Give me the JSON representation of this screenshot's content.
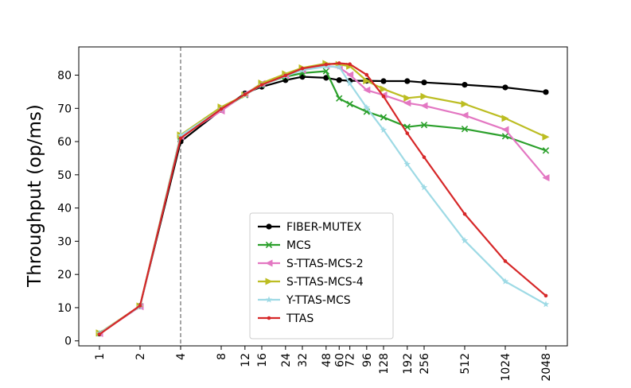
{
  "chart_data": {
    "type": "line",
    "title": "",
    "xlabel": "",
    "ylabel": "Throughput (op/ms)",
    "xscale": "log2",
    "x": [
      1,
      2,
      4,
      8,
      12,
      16,
      24,
      32,
      48,
      60,
      72,
      96,
      128,
      192,
      256,
      512,
      1024,
      2048
    ],
    "x_tick_labels": [
      "1",
      "2",
      "4",
      "8",
      "12",
      "16",
      "24",
      "32",
      "48",
      "60",
      "72",
      "96",
      "128",
      "192",
      "256",
      "512",
      "1024",
      "2048"
    ],
    "y_ticks": [
      0,
      10,
      20,
      30,
      40,
      50,
      60,
      70,
      80
    ],
    "ylim": [
      -1.5,
      88.5
    ],
    "vline_x": 4,
    "legend_position": "lower-center",
    "series": [
      {
        "name": "FIBER-MUTEX",
        "color": "#000000",
        "marker": "circle",
        "values": [
          2.2,
          10.5,
          60.0,
          69.5,
          74.5,
          76.5,
          78.5,
          79.5,
          79.2,
          78.5,
          78.3,
          78.3,
          78.2,
          78.2,
          77.8,
          77.1,
          76.3,
          74.9
        ]
      },
      {
        "name": "MCS",
        "color": "#2ca02c",
        "marker": "x",
        "values": [
          2.3,
          10.4,
          61.5,
          69.5,
          74.0,
          77.2,
          79.5,
          80.6,
          81.2,
          73.0,
          71.3,
          69.0,
          67.3,
          64.4,
          65.0,
          63.8,
          61.6,
          57.3
        ]
      },
      {
        "name": "S-TTAS-MCS-2",
        "color": "#e377c2",
        "marker": "triangle-left",
        "values": [
          2.2,
          10.3,
          61.5,
          69.2,
          74.3,
          77.5,
          79.8,
          81.5,
          82.8,
          82.3,
          80.1,
          75.5,
          74.0,
          71.6,
          70.8,
          67.9,
          63.6,
          49.1
        ]
      },
      {
        "name": "S-TTAS-MCS-4",
        "color": "#bcbd22",
        "marker": "triangle-right",
        "values": [
          2.4,
          10.5,
          62.0,
          70.4,
          74.0,
          77.6,
          80.4,
          82.2,
          83.5,
          83.2,
          82.7,
          78.3,
          75.8,
          73.1,
          73.6,
          71.3,
          67.0,
          61.4
        ]
      },
      {
        "name": "Y-TTAS-MCS",
        "color": "#9edae5",
        "marker": "star",
        "values": [
          2.3,
          10.4,
          61.8,
          69.8,
          74.1,
          77.0,
          79.7,
          81.5,
          82.6,
          82.5,
          77.5,
          70.2,
          63.5,
          53.2,
          46.2,
          30.2,
          17.9,
          11.0
        ]
      },
      {
        "name": "TTAS",
        "color": "#d62728",
        "marker": "dot",
        "values": [
          2.0,
          10.6,
          61.0,
          69.8,
          74.2,
          77.1,
          79.9,
          82.0,
          83.2,
          83.6,
          83.3,
          80.1,
          73.6,
          62.5,
          55.3,
          38.2,
          24.0,
          13.6
        ]
      }
    ]
  }
}
